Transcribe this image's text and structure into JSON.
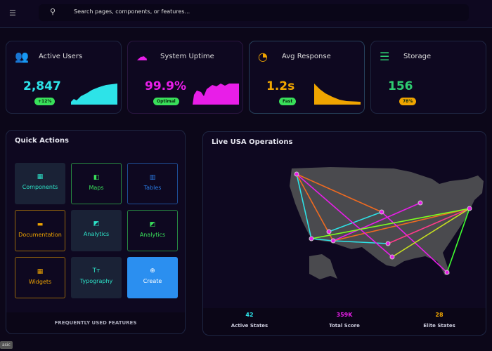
{
  "topbar": {
    "menu_icon": "hamburger-icon",
    "search_icon": "search-icon",
    "search_placeholder": "Search pages, components, or features..."
  },
  "stats": [
    {
      "label": "Active Users",
      "value": "2,847",
      "badge": "+12%",
      "icon": "users-icon",
      "color": "#2de3e8"
    },
    {
      "label": "System Uptime",
      "value": "99.9%",
      "badge": "Optimal",
      "icon": "cloud-icon",
      "color": "#e81ee8"
    },
    {
      "label": "Avg Response",
      "value": "1.2s",
      "badge": "Fast",
      "icon": "gauge-icon",
      "color": "#f0a500"
    },
    {
      "label": "Storage",
      "value": "156",
      "badge": "78%",
      "icon": "database-icon",
      "color": "#2ecc71"
    }
  ],
  "quick_actions": {
    "title": "Quick Actions",
    "footer": "FREQUENTLY USED FEATURES",
    "items": [
      {
        "label": "Components",
        "icon": "grid-icon",
        "color": "#2de3c8"
      },
      {
        "label": "Maps",
        "icon": "map-icon",
        "color": "#39e05a"
      },
      {
        "label": "Tables",
        "icon": "table-icon",
        "color": "#2a7de8"
      },
      {
        "label": "Documentation",
        "icon": "book-icon",
        "color": "#f0a500"
      },
      {
        "label": "Analytics",
        "icon": "chart-icon",
        "color": "#2de3c8"
      },
      {
        "label": "Analytics",
        "icon": "chart-icon",
        "color": "#39e05a"
      },
      {
        "label": "Widgets",
        "icon": "widgets-icon",
        "color": "#f0a500"
      },
      {
        "label": "Typography",
        "icon": "typography-icon",
        "color": "#2de3c8"
      },
      {
        "label": "Create",
        "icon": "plus-circle-icon",
        "color": "#ffffff"
      }
    ]
  },
  "map": {
    "title": "Live USA Operations",
    "stats": [
      {
        "value": "42",
        "label": "Active States",
        "color": "#2de3e8"
      },
      {
        "value": "359K",
        "label": "Total Score",
        "color": "#e81ee8"
      },
      {
        "value": "28",
        "label": "Elite States",
        "color": "#f0a500"
      }
    ]
  },
  "corner_tag": "asic"
}
